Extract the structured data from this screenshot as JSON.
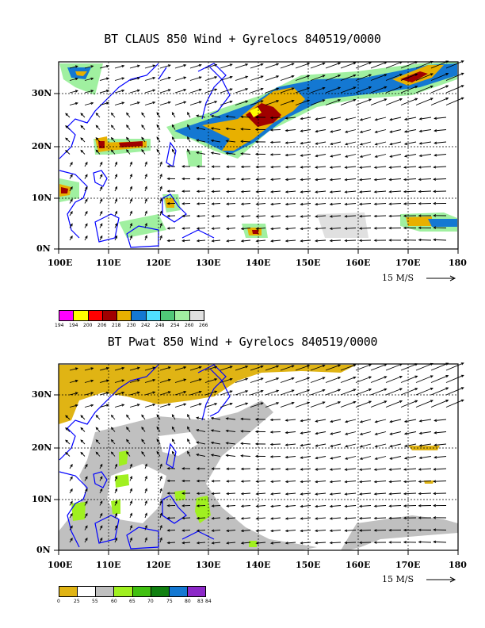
{
  "panels": [
    {
      "title": "BT CLAUS 850 Wind + Gyrelocs 840519/0000",
      "scale_label": "15 M/S",
      "lon_labels": [
        "100E",
        "110E",
        "120E",
        "130E",
        "140E",
        "150E",
        "160E",
        "170E",
        "180"
      ],
      "lat_labels": [
        "0N",
        "10N",
        "20N",
        "30N"
      ],
      "legend": {
        "values": [
          "194",
          "194",
          "200",
          "206",
          "218",
          "230",
          "242",
          "248",
          "254",
          "260",
          "266"
        ],
        "colors": [
          "#ff00ff",
          "#ffff00",
          "#ff0000",
          "#a00000",
          "#e8b000",
          "#1478d2",
          "#50e0ff",
          "#50c878",
          "#a0f0a0",
          "#e0e0e0"
        ]
      }
    },
    {
      "title": "BT Pwat 850 Wind + Gyrelocs 840519/0000",
      "scale_label": "15 M/S",
      "lon_labels": [
        "100E",
        "110E",
        "120E",
        "130E",
        "140E",
        "150E",
        "160E",
        "170E",
        "180"
      ],
      "lat_labels": [
        "0N",
        "10N",
        "20N",
        "30N"
      ],
      "legend": {
        "values": [
          "0",
          "25",
          "55",
          "60",
          "65",
          "70",
          "75",
          "80",
          "83",
          "84"
        ],
        "colors": [
          "#e0b414",
          "#ffffff",
          "#c0c0c0",
          "#a0f020",
          "#40c010",
          "#108010",
          "#1478d2",
          "#8c28c8"
        ]
      }
    }
  ]
}
